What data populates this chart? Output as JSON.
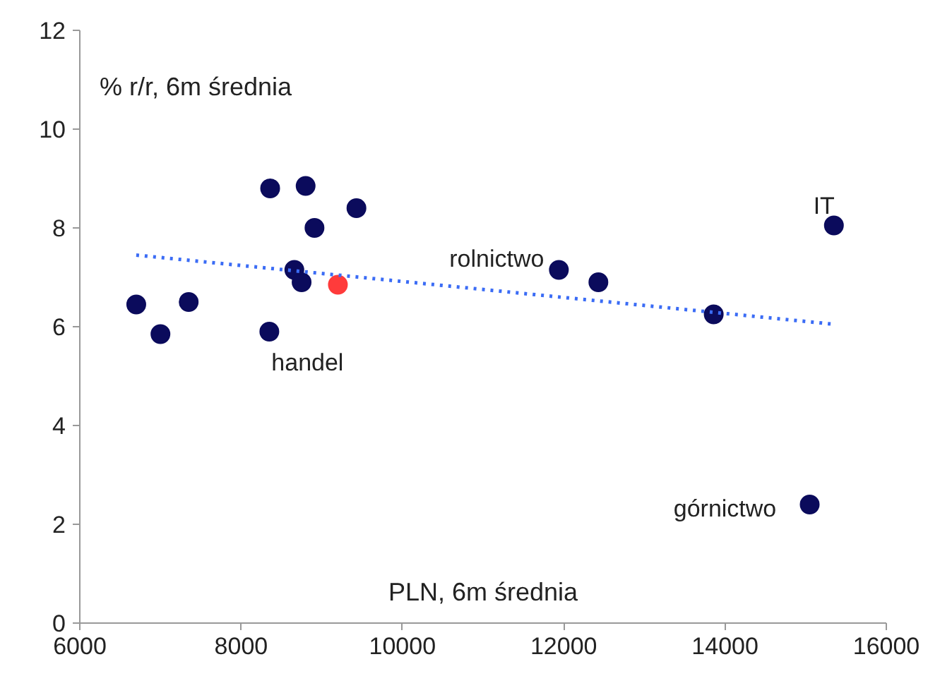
{
  "chart_data": {
    "type": "scatter",
    "xlabel": "PLN, 6m średnia",
    "ylabel": "% r/r, 6m średnia",
    "xlim": [
      6000,
      16000
    ],
    "xticks": [
      6000,
      8000,
      10000,
      12000,
      14000,
      16000
    ],
    "ylim": [
      0,
      12
    ],
    "yticks": [
      0,
      2,
      4,
      6,
      8,
      10,
      12
    ],
    "grid": false,
    "marker": "circle",
    "series": [
      {
        "color": "#0b0b5c",
        "x": [
          6700,
          7000,
          7350,
          8360,
          8800,
          8910,
          9430,
          8660,
          8750,
          8350,
          11940,
          12430,
          13860,
          15350,
          15050
        ],
        "values": [
          6.45,
          5.85,
          6.5,
          8.8,
          8.85,
          8.0,
          8.4,
          7.15,
          6.9,
          5.9,
          7.15,
          6.9,
          6.25,
          8.05,
          2.4
        ]
      },
      {
        "color": "#ff3b3b",
        "x": [
          9200
        ],
        "values": [
          6.85
        ]
      },
      {
        "type": "line",
        "line_style": "dotted",
        "marker": "none",
        "color": "#3b6cf5",
        "x": [
          6700,
          15350
        ],
        "values": [
          7.45,
          6.05
        ]
      }
    ],
    "annotations": [
      {
        "text": "IT",
        "x": 15350,
        "y": 8.05
      },
      {
        "text": "rolnictwo",
        "x": 11940,
        "y": 7.15
      },
      {
        "text": "handel",
        "x": 8350,
        "y": 5.9
      },
      {
        "text": "górnictwo",
        "x": 15050,
        "y": 2.4
      }
    ]
  }
}
